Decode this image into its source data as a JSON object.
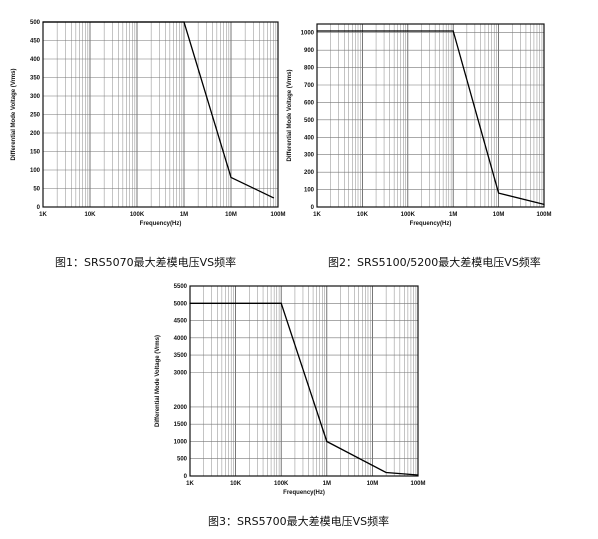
{
  "chart_data": [
    {
      "type": "line",
      "caption": "图1：SRS5070最大差模电压VS频率",
      "xlabel": "Frequency(Hz)",
      "ylabel": "Differential Mode Voltage (Vrms)",
      "xscale": "log",
      "xlim": [
        1000,
        100000000
      ],
      "ylim": [
        0,
        500
      ],
      "x_ticks": [
        1000,
        10000,
        100000,
        1000000,
        10000000,
        100000000
      ],
      "x_tick_labels": [
        "1K",
        "10K",
        "100K",
        "1M",
        "10M",
        "100M"
      ],
      "y_ticks": [
        0,
        50,
        100,
        150,
        200,
        250,
        300,
        350,
        400,
        450,
        500
      ],
      "y_tick_labels": [
        "0",
        "50",
        "100",
        "150",
        "200",
        "250",
        "300",
        "350",
        "400",
        "450",
        "500"
      ],
      "grid": true,
      "series": [
        {
          "x": [
            1000,
            1000000,
            10000000,
            80000000
          ],
          "y": [
            500,
            500,
            80,
            25
          ]
        }
      ]
    },
    {
      "type": "line",
      "caption": "图2：SRS5100/5200最大差模电压VS频率",
      "xlabel": "Frequency(Hz)",
      "ylabel": "Differential Mode Voltage (Vrms)",
      "xscale": "log",
      "xlim": [
        1000,
        100000000
      ],
      "ylim": [
        0,
        1050
      ],
      "x_ticks": [
        1000,
        10000,
        100000,
        1000000,
        10000000,
        100000000
      ],
      "x_tick_labels": [
        "1K",
        "10K",
        "100K",
        "1M",
        "10M",
        "100M"
      ],
      "y_ticks": [
        0,
        100,
        200,
        300,
        400,
        500,
        600,
        700,
        800,
        900,
        1000
      ],
      "y_tick_labels": [
        "0",
        "100",
        "200",
        "300",
        "400",
        "500",
        "600",
        "700",
        "800",
        "900",
        "1000"
      ],
      "grid": true,
      "series": [
        {
          "x": [
            1000,
            1000000,
            10000000,
            100000000
          ],
          "y": [
            1010,
            1010,
            80,
            15
          ]
        }
      ]
    },
    {
      "type": "line",
      "caption": "图3：SRS5700最大差模电压VS频率",
      "xlabel": "Frequency(Hz)",
      "ylabel": "Differential Mode Voltage (Vrms)",
      "xscale": "log",
      "xlim": [
        1000,
        100000000
      ],
      "ylim": [
        0,
        5500
      ],
      "x_ticks": [
        1000,
        10000,
        100000,
        1000000,
        10000000,
        100000000
      ],
      "x_tick_labels": [
        "1K",
        "10K",
        "100K",
        "1M",
        "10M",
        "100M"
      ],
      "y_ticks": [
        0,
        500,
        1000,
        1500,
        2000,
        3000,
        3500,
        4000,
        4500,
        5000,
        5500
      ],
      "y_tick_labels": [
        "0",
        "500",
        "1000",
        "1500",
        "2000",
        "3000",
        "3500",
        "4000",
        "4500",
        "5000",
        "5500"
      ],
      "grid": true,
      "series": [
        {
          "x": [
            1000,
            100000,
            1000000,
            20000000,
            100000000
          ],
          "y": [
            5000,
            5000,
            1000,
            100,
            30
          ]
        }
      ]
    }
  ]
}
